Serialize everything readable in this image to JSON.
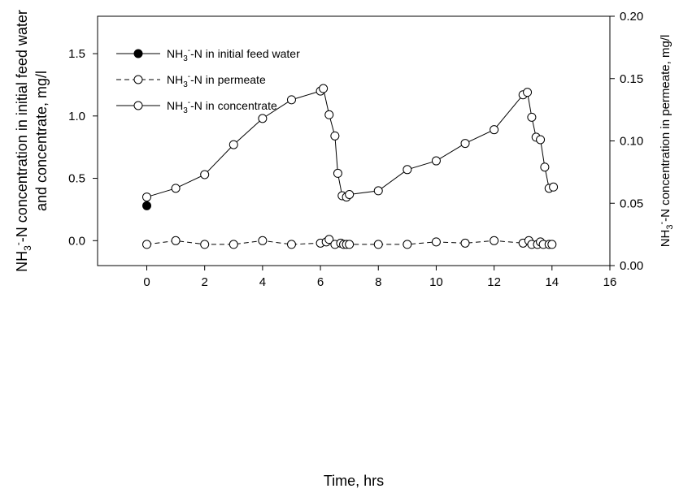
{
  "chart_data": {
    "type": "line",
    "xlabel": "Time, hrs",
    "ylabel_left_line1": "NH3-N concentration in initial feed water",
    "ylabel_left_line2": "and concentrate, mg/l",
    "ylabel_right": "NH3-N concentration in permeate, mg/l",
    "xlim": [
      -1.7,
      16
    ],
    "ylim_left": [
      -0.2,
      1.8
    ],
    "ylim_right": [
      0.0,
      0.2
    ],
    "x_ticks": [
      0,
      2,
      4,
      6,
      8,
      10,
      12,
      14,
      16
    ],
    "y_left_ticks": [
      0.0,
      0.5,
      1.0,
      1.5
    ],
    "y_right_ticks": [
      0.0,
      0.05,
      0.1,
      0.15,
      0.2
    ],
    "x_tick_labels": [
      "0",
      "2",
      "4",
      "6",
      "8",
      "10",
      "12",
      "14",
      "16"
    ],
    "y_left_tick_labels": [
      "0.0",
      "0.5",
      "1.0",
      "1.5"
    ],
    "y_right_tick_labels": [
      "0.00",
      "0.05",
      "0.10",
      "0.15",
      "0.20"
    ],
    "legend_position": "top-left",
    "grid": false,
    "series": [
      {
        "name": "NH3-N in initial feed water",
        "axis": "left",
        "marker": "filled-circle",
        "line": "solid",
        "points": [
          [
            0,
            0.28
          ]
        ]
      },
      {
        "name": "NH3-N in permeate",
        "axis": "left",
        "marker": "open-circle",
        "line": "dashed",
        "points": [
          [
            0,
            -0.03
          ],
          [
            1,
            0.0
          ],
          [
            2,
            -0.03
          ],
          [
            3,
            -0.03
          ],
          [
            4,
            0.0
          ],
          [
            5,
            -0.03
          ],
          [
            6,
            -0.02
          ],
          [
            6.2,
            -0.01
          ],
          [
            6.3,
            0.01
          ],
          [
            6.5,
            -0.03
          ],
          [
            6.7,
            -0.02
          ],
          [
            6.8,
            -0.03
          ],
          [
            6.9,
            -0.03
          ],
          [
            7,
            -0.03
          ],
          [
            8,
            -0.03
          ],
          [
            9,
            -0.03
          ],
          [
            10,
            -0.01
          ],
          [
            11,
            -0.02
          ],
          [
            12,
            0.0
          ],
          [
            13,
            -0.02
          ],
          [
            13.2,
            0.0
          ],
          [
            13.3,
            -0.03
          ],
          [
            13.5,
            -0.03
          ],
          [
            13.6,
            -0.01
          ],
          [
            13.7,
            -0.03
          ],
          [
            13.9,
            -0.03
          ],
          [
            14,
            -0.03
          ]
        ]
      },
      {
        "name": "NH3-N in concentrate",
        "axis": "left",
        "marker": "open-circle",
        "line": "solid",
        "points": [
          [
            0,
            0.35
          ],
          [
            1,
            0.42
          ],
          [
            2,
            0.53
          ],
          [
            3,
            0.77
          ],
          [
            4,
            0.98
          ],
          [
            5,
            1.13
          ],
          [
            6,
            1.2
          ],
          [
            6.1,
            1.22
          ],
          [
            6.3,
            1.01
          ],
          [
            6.5,
            0.84
          ],
          [
            6.6,
            0.54
          ],
          [
            6.75,
            0.36
          ],
          [
            6.9,
            0.35
          ],
          [
            7,
            0.37
          ],
          [
            8,
            0.4
          ],
          [
            9,
            0.57
          ],
          [
            10,
            0.64
          ],
          [
            11,
            0.78
          ],
          [
            12,
            0.89
          ],
          [
            13,
            1.17
          ],
          [
            13.15,
            1.19
          ],
          [
            13.3,
            0.99
          ],
          [
            13.45,
            0.83
          ],
          [
            13.6,
            0.81
          ],
          [
            13.75,
            0.59
          ],
          [
            13.9,
            0.42
          ],
          [
            14.05,
            0.43
          ]
        ]
      }
    ],
    "legend": [
      {
        "prefix": "NH",
        "sub": "3",
        "sup": "-",
        "rest": "-N in initial feed water",
        "series_index": 0
      },
      {
        "prefix": "NH",
        "sub": "3",
        "sup": "-",
        "rest": "-N in permeate",
        "series_index": 1
      },
      {
        "prefix": "NH",
        "sub": "3",
        "sup": "-",
        "rest": "-N in concentrate",
        "series_index": 2
      }
    ]
  }
}
